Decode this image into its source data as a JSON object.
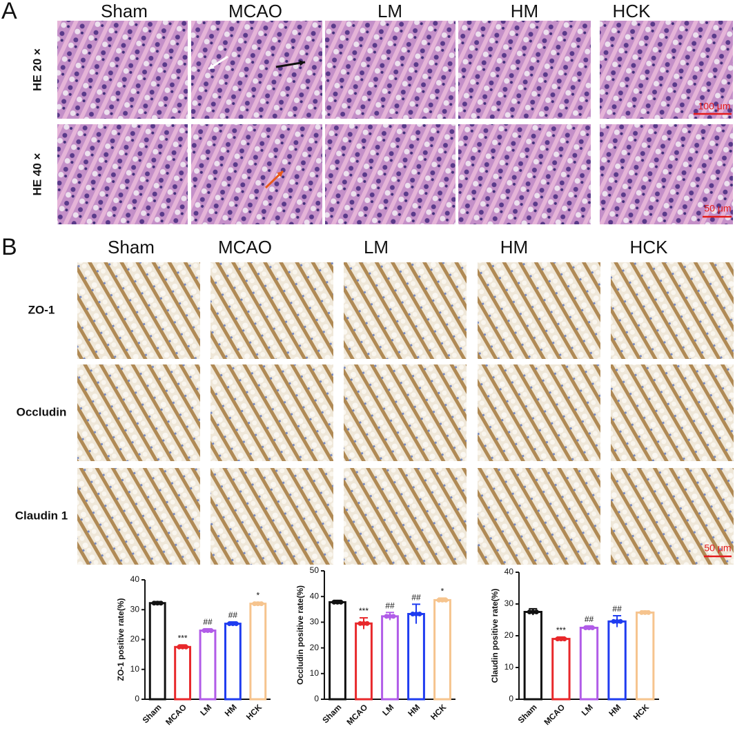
{
  "panel_a": {
    "label": "A",
    "columns": [
      "Sham",
      "MCAO",
      "LM",
      "HM",
      "HCK"
    ],
    "rows": [
      "HE 20 ×",
      "HE 40 ×"
    ],
    "scale_bars": [
      "100 μm",
      "50 μm"
    ]
  },
  "panel_b": {
    "label": "B",
    "columns": [
      "Sham",
      "MCAO",
      "LM",
      "HM",
      "HCK"
    ],
    "rows": [
      "ZO-1",
      "Occludin",
      "Claudin 1"
    ],
    "scale_bar": "50 μm"
  },
  "chart_data": [
    {
      "type": "bar",
      "y_label": "ZO-1 positive rate(%)",
      "categories": [
        "Sham",
        "MCAO",
        "LM",
        "HM",
        "HCK"
      ],
      "values": [
        32.2,
        17.5,
        23,
        25.3,
        32
      ],
      "errors": [
        0.5,
        0.7,
        0.6,
        0.6,
        0.5
      ],
      "annotations": [
        null,
        "***",
        "##",
        "##",
        "*"
      ],
      "colors": [
        "#111111",
        "#e8282b",
        "#b15ce8",
        "#1f3cf0",
        "#f6c48e"
      ],
      "ylim": [
        0,
        40
      ],
      "yticks": [
        0,
        10,
        20,
        30,
        40
      ]
    },
    {
      "type": "bar",
      "y_label": "Occludin positive rate(%)",
      "categories": [
        "Sham",
        "MCAO",
        "LM",
        "HM",
        "HCK"
      ],
      "values": [
        37.8,
        29.5,
        32.3,
        33.2,
        38.6
      ],
      "errors": [
        0.7,
        2.2,
        1.5,
        3.8,
        0.8
      ],
      "annotations": [
        null,
        "***",
        "##",
        "##",
        "*"
      ],
      "colors": [
        "#111111",
        "#e8282b",
        "#b15ce8",
        "#1f3cf0",
        "#f6c48e"
      ],
      "ylim": [
        0,
        50
      ],
      "yticks": [
        0,
        10,
        20,
        30,
        40,
        50
      ]
    },
    {
      "type": "bar",
      "y_label": "Claudin positive rate(%)",
      "categories": [
        "Sham",
        "MCAO",
        "LM",
        "HM",
        "HCK"
      ],
      "values": [
        27.5,
        19,
        22.5,
        24.5,
        27.3
      ],
      "errors": [
        1,
        0.6,
        0.6,
        1.8,
        0.5
      ],
      "annotations": [
        null,
        "***",
        "##",
        "##",
        null
      ],
      "colors": [
        "#111111",
        "#e8282b",
        "#b15ce8",
        "#1f3cf0",
        "#f6c48e"
      ],
      "ylim": [
        0,
        40
      ],
      "yticks": [
        0,
        10,
        20,
        30,
        40
      ]
    }
  ]
}
